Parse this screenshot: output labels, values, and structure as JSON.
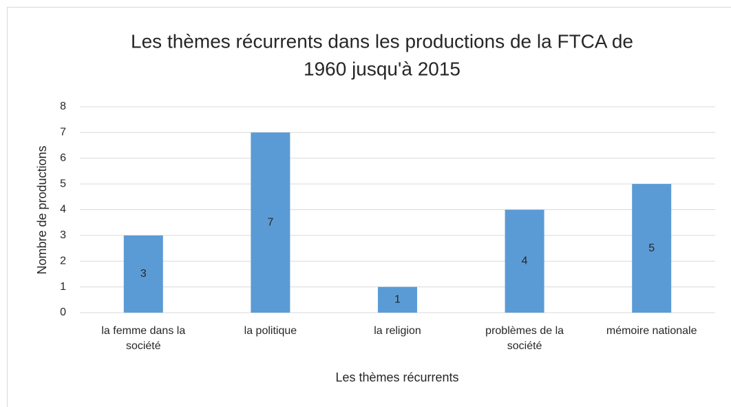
{
  "chart_data": {
    "type": "bar",
    "title": [
      "Les thèmes récurrents dans les productions de la FTCA de",
      "1960 jusqu'à 2015"
    ],
    "x_label": "Les thèmes récurrents",
    "y_label": "Nombre de productions",
    "categories": [
      "la femme dans la société",
      "la politique",
      "la religion",
      "problèmes de la société",
      "mémoire nationale"
    ],
    "values": [
      3,
      7,
      1,
      4,
      5
    ],
    "color": "#5b9bd5",
    "ylim": [
      0,
      8
    ],
    "yticks": [
      0,
      1,
      2,
      3,
      4,
      5,
      6,
      7,
      8
    ],
    "grid": true
  }
}
